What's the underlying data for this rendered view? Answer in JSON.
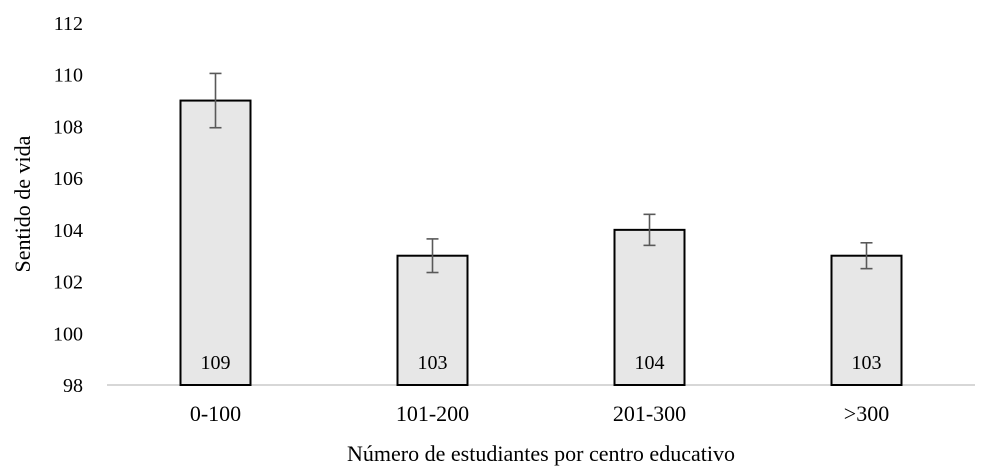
{
  "chart_data": {
    "type": "bar",
    "categories": [
      "0-100",
      "101-200",
      "201-300",
      ">300"
    ],
    "values": [
      109,
      103,
      104,
      103
    ],
    "data_labels": [
      "109",
      "103",
      "104",
      "103"
    ],
    "error_bars": [
      {
        "low": 107.95,
        "high": 110.05
      },
      {
        "low": 102.35,
        "high": 103.65
      },
      {
        "low": 103.4,
        "high": 104.6
      },
      {
        "low": 102.5,
        "high": 103.5
      }
    ],
    "xlabel": "Número de estudiantes por centro educativo",
    "ylabel": "Sentido de vida",
    "ylim": [
      98,
      112
    ],
    "yticks": [
      "98",
      "100",
      "102",
      "104",
      "106",
      "108",
      "110",
      "112"
    ],
    "bar_color": "#e7e7e7",
    "grid": false,
    "legend": "none"
  }
}
